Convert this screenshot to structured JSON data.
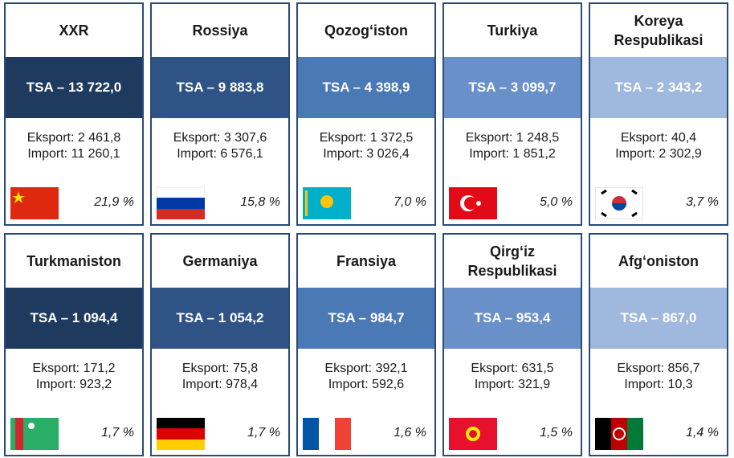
{
  "cards": [
    {
      "country": "XXR",
      "tsa": "TSA – 13 722,0",
      "eksport": "Eksport: 2 461,8",
      "import": "Import: 11 260,1",
      "share": "21,9 %"
    },
    {
      "country": "Rossiya",
      "tsa": "TSA – 9 883,8",
      "eksport": "Eksport: 3 307,6",
      "import": "Import: 6 576,1",
      "share": "15,8 %"
    },
    {
      "country": "Qozog‘iston",
      "tsa": "TSA – 4 398,9",
      "eksport": "Eksport: 1 372,5",
      "import": "Import: 3 026,4",
      "share": "7,0 %"
    },
    {
      "country": "Turkiya",
      "tsa": "TSA – 3 099,7",
      "eksport": "Eksport: 1 248,5",
      "import": "Import: 1 851,2",
      "share": "5,0 %"
    },
    {
      "country": "Koreya Respublikasi",
      "tsa": "TSA – 2 343,2",
      "eksport": "Eksport: 40,4",
      "import": "Import: 2 302,9",
      "share": "3,7 %"
    },
    {
      "country": "Turkmaniston",
      "tsa": "TSA – 1 094,4",
      "eksport": "Eksport: 171,2",
      "import": "Import: 923,2",
      "share": "1,7 %"
    },
    {
      "country": "Germaniya",
      "tsa": "TSA – 1 054,2",
      "eksport": "Eksport: 75,8",
      "import": "Import: 978,4",
      "share": "1,7 %"
    },
    {
      "country": "Fransiya",
      "tsa": "TSA – 984,7",
      "eksport": "Eksport: 392,1",
      "import": "Import: 592,6",
      "share": "1,6 %"
    },
    {
      "country": "Qirg‘iz Respublikasi",
      "tsa": "TSA – 953,4",
      "eksport": "Eksport: 631,5",
      "import": "Import: 321,9",
      "share": "1,5 %"
    },
    {
      "country": "Afg‘oniston",
      "tsa": "TSA – 867,0",
      "eksport": "Eksport: 856,7",
      "import": "Import: 10,3",
      "share": "1,4 %"
    }
  ]
}
